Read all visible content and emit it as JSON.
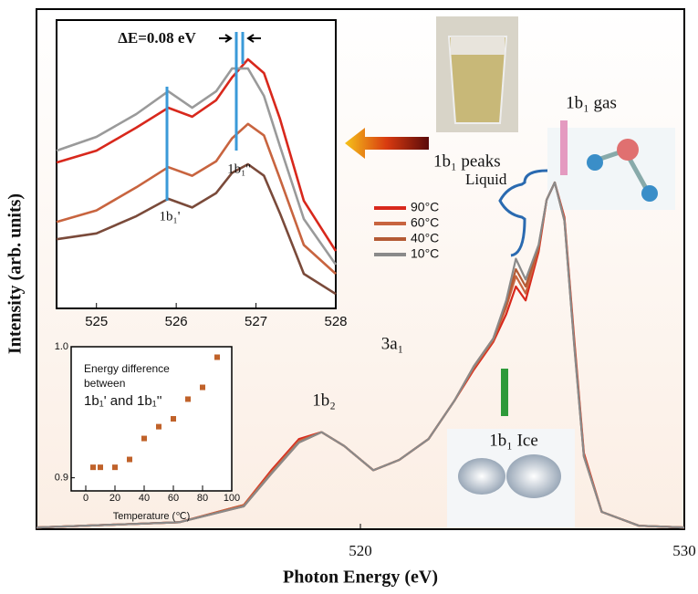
{
  "chart_data": [
    {
      "type": "line",
      "xlabel": "Photon Energy (eV)",
      "ylabel": "Intensity (arb. units)",
      "xlim": [
        510,
        530
      ],
      "xticks": [
        520,
        530
      ],
      "ylim": [
        0,
        1.5
      ],
      "annotations": [
        "1b₂",
        "3a₁",
        "1b₁ gas",
        "1b₁ peaks",
        "Liquid",
        "1b₁ Ice"
      ],
      "x": [
        510,
        514.4,
        516.4,
        517.25,
        518.1,
        518.8,
        519.5,
        520.4,
        521.2,
        522.1,
        522.9,
        523.5,
        524.1,
        524.5,
        524.8,
        525.1,
        525.5,
        525.75,
        526.0,
        526.3,
        526.6,
        526.9,
        527.45,
        528.6,
        530
      ],
      "series": [
        {
          "name": "90°C",
          "color": "#d8281c",
          "values": [
            0.005,
            0.02,
            0.07,
            0.17,
            0.26,
            0.28,
            0.24,
            0.17,
            0.2,
            0.26,
            0.37,
            0.46,
            0.54,
            0.62,
            0.7,
            0.66,
            0.8,
            0.95,
            1.0,
            0.9,
            0.55,
            0.22,
            0.05,
            0.01,
            0.005
          ]
        },
        {
          "name": "60°C",
          "color": "#c8643f",
          "values": [
            0.005,
            0.02,
            0.07,
            0.165,
            0.255,
            0.28,
            0.24,
            0.17,
            0.2,
            0.26,
            0.37,
            0.465,
            0.545,
            0.64,
            0.73,
            0.68,
            0.81,
            0.95,
            1.0,
            0.895,
            0.54,
            0.215,
            0.05,
            0.01,
            0.005
          ]
        },
        {
          "name": "40°C",
          "color": "#b45a34",
          "values": [
            0.005,
            0.02,
            0.066,
            0.16,
            0.25,
            0.28,
            0.24,
            0.17,
            0.2,
            0.26,
            0.37,
            0.47,
            0.55,
            0.65,
            0.75,
            0.7,
            0.815,
            0.95,
            1.0,
            0.89,
            0.535,
            0.21,
            0.05,
            0.01,
            0.005
          ]
        },
        {
          "name": "10°C",
          "color": "#8a8a8a",
          "values": [
            0.005,
            0.02,
            0.066,
            0.16,
            0.25,
            0.28,
            0.24,
            0.17,
            0.2,
            0.26,
            0.37,
            0.47,
            0.55,
            0.66,
            0.78,
            0.72,
            0.82,
            0.95,
            1.0,
            0.89,
            0.53,
            0.21,
            0.05,
            0.01,
            0.005
          ]
        }
      ]
    },
    {
      "type": "line",
      "xlim": [
        524.5,
        528
      ],
      "xticks": [
        525,
        526,
        527,
        528
      ],
      "ylim": [
        0,
        1
      ],
      "annotations": [
        "ΔE=0.08 eV",
        "1b₁'",
        "1b₁''"
      ],
      "x": [
        524.5,
        525,
        525.5,
        525.9,
        526.2,
        526.5,
        526.7,
        526.9,
        527.1,
        527.3,
        527.6,
        528
      ],
      "series": [
        {
          "color": "#d8281c",
          "values": [
            0.506,
            0.547,
            0.627,
            0.696,
            0.665,
            0.722,
            0.801,
            0.864,
            0.816,
            0.658,
            0.373,
            0.199
          ]
        },
        {
          "color": "#c8643f",
          "values": [
            0.3,
            0.34,
            0.42,
            0.49,
            0.46,
            0.51,
            0.59,
            0.64,
            0.6,
            0.45,
            0.22,
            0.12
          ]
        },
        {
          "color": "#7a4a3a",
          "values": [
            0.24,
            0.26,
            0.32,
            0.38,
            0.35,
            0.4,
            0.47,
            0.5,
            0.46,
            0.33,
            0.12,
            0.05
          ]
        },
        {
          "color": "#9a9a9a",
          "values": [
            0.547,
            0.595,
            0.674,
            0.753,
            0.696,
            0.753,
            0.832,
            0.832,
            0.737,
            0.563,
            0.31,
            0.152
          ]
        }
      ]
    },
    {
      "type": "scatter",
      "title": [
        "Energy difference",
        "between",
        "1b₁' and 1b₁''"
      ],
      "xlabel": "Temperature (℃)",
      "xlim": [
        -10,
        100
      ],
      "xticks": [
        0,
        20,
        40,
        60,
        80,
        100
      ],
      "ylim": [
        0.89,
        1.0
      ],
      "yticks": [
        0.9,
        {
          "value": 1.0,
          "label": "1.0"
        }
      ],
      "color": "#c0622a",
      "x": [
        5,
        10,
        20,
        30,
        40,
        50,
        60,
        70,
        80,
        90
      ],
      "values": [
        0.908,
        0.908,
        0.908,
        0.914,
        0.93,
        0.939,
        0.945,
        0.96,
        0.969,
        0.992
      ]
    }
  ]
}
